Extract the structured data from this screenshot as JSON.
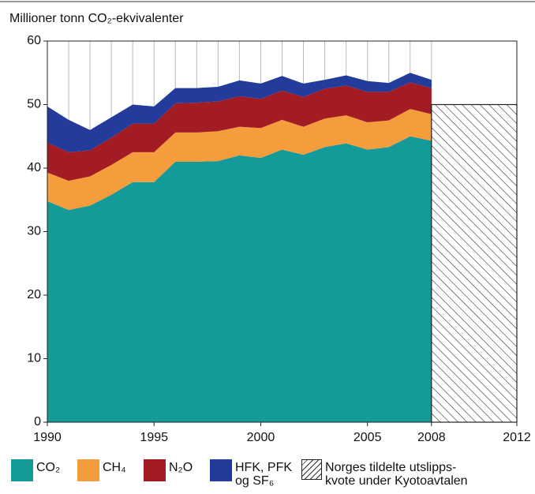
{
  "chart_data": {
    "type": "stacked_area",
    "title": "Millioner tonn CO₂-ekvivalenter",
    "x": [
      1990,
      1991,
      1992,
      1993,
      1994,
      1995,
      1996,
      1997,
      1998,
      1999,
      2000,
      2001,
      2002,
      2003,
      2004,
      2005,
      2006,
      2007,
      2008
    ],
    "series": [
      {
        "name": "CO₂",
        "color": "#159a9a",
        "values": [
          34.8,
          33.4,
          34.1,
          35.8,
          37.8,
          37.8,
          41.0,
          41.0,
          41.1,
          42.0,
          41.6,
          42.9,
          42.1,
          43.3,
          43.9,
          42.9,
          43.3,
          45.0,
          44.3
        ]
      },
      {
        "name": "CH₄",
        "color": "#f59c3c",
        "values": [
          4.5,
          4.6,
          4.6,
          4.7,
          4.7,
          4.7,
          4.6,
          4.6,
          4.7,
          4.5,
          4.7,
          4.7,
          4.4,
          4.5,
          4.4,
          4.3,
          4.2,
          4.3,
          4.2
        ]
      },
      {
        "name": "N₂O",
        "color": "#a31c24",
        "values": [
          4.7,
          4.5,
          4.1,
          4.3,
          4.5,
          4.5,
          4.6,
          4.7,
          4.7,
          4.8,
          4.6,
          4.6,
          4.7,
          4.7,
          4.7,
          4.8,
          4.5,
          4.2,
          4.1
        ]
      },
      {
        "name": "HFK, PFK\nog SF₆",
        "color": "#233b9b",
        "values": [
          5.7,
          5.1,
          3.2,
          3.2,
          3.0,
          2.7,
          2.4,
          2.3,
          2.3,
          2.5,
          2.4,
          2.3,
          2.1,
          1.4,
          1.6,
          1.7,
          1.4,
          1.5,
          1.3
        ]
      }
    ],
    "quota": {
      "name": "Norges tildelte utslipps-\nkvote under Kyotoavtalen",
      "value": 50,
      "x": [
        2008,
        2012
      ]
    },
    "xlim": [
      1990,
      2012
    ],
    "xticks": [
      1990,
      1995,
      2000,
      2005,
      2008,
      2012
    ],
    "ylim": [
      0,
      60
    ],
    "yticks": [
      0,
      10,
      20,
      30,
      40,
      50,
      60
    ]
  }
}
